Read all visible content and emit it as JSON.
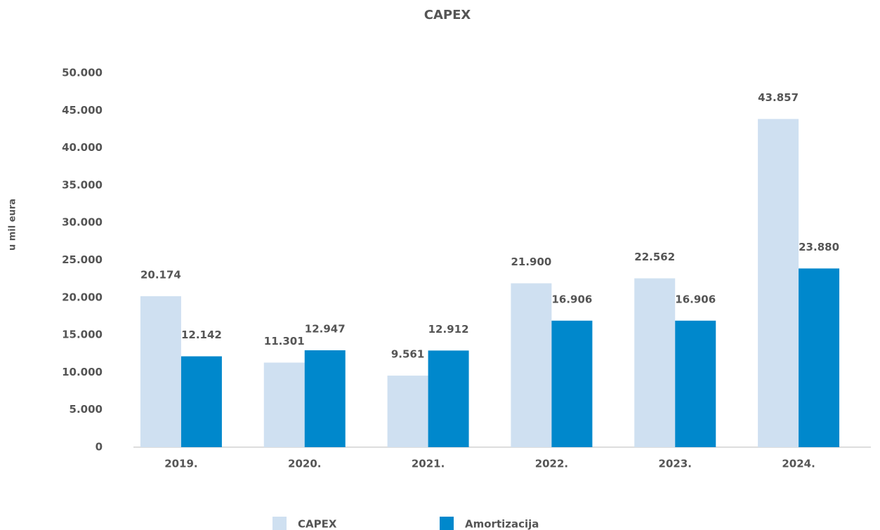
{
  "chart_data": {
    "type": "bar",
    "title": "CAPEX",
    "y_label": "u mil eura",
    "categories": [
      "2019.",
      "2020.",
      "2021.",
      "2022.",
      "2023.",
      "2024."
    ],
    "series": [
      {
        "name": "CAPEX",
        "color": "#cfe0f1",
        "values": [
          20174,
          11301,
          9561,
          21900,
          22562,
          43857
        ],
        "value_labels": [
          "20.174",
          "11.301",
          "9.561",
          "21.900",
          "22.562",
          "43.857"
        ]
      },
      {
        "name": "Amortizacija",
        "color": "#0088cc",
        "values": [
          12142,
          12947,
          12912,
          16906,
          16906,
          23880
        ],
        "value_labels": [
          "12.142",
          "12.947",
          "12.912",
          "16.906",
          "16.906",
          "23.880"
        ]
      }
    ],
    "ylim": [
      0,
      50000
    ],
    "yticks": [
      0,
      {
        "value": 5000,
        "label": "5.000"
      },
      {
        "value": 10000,
        "label": "10.000"
      },
      {
        "value": 15000,
        "label": "15.000"
      },
      {
        "value": 20000,
        "label": "20.000"
      },
      {
        "value": 25000,
        "label": "25.000"
      },
      {
        "value": 30000,
        "label": "30.000"
      },
      {
        "value": 35000,
        "label": "35.000"
      },
      {
        "value": 40000,
        "label": "40.000"
      },
      {
        "value": 45000,
        "label": "45.000"
      },
      {
        "value": 50000,
        "label": "50.000"
      }
    ],
    "grid": false,
    "legend": "bottom"
  }
}
